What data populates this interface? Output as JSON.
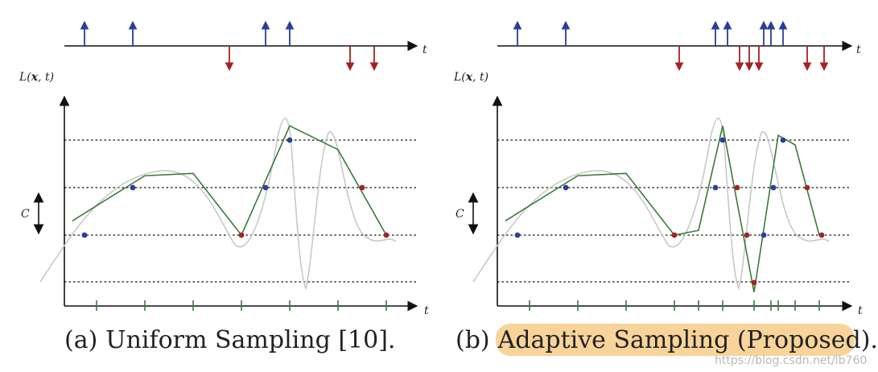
{
  "colors": {
    "positive_event": "#2b3d9c",
    "negative_event": "#a32424",
    "reconstruction": "#3a7a3a",
    "true_signal": "#c8c8c8",
    "axis": "#111111",
    "highlight": "#f8d49a"
  },
  "axes": {
    "t_label": "t",
    "y_label_base": "L(",
    "y_label_bold": "x",
    "y_label_tail": ", t)",
    "c_label": "C"
  },
  "panels": [
    {
      "caption_prefix": "(a)",
      "caption": "Uniform Sampling [10].",
      "pos_events": [
        0.05,
        0.25,
        0.8,
        0.9
      ],
      "neg_events": [
        0.65,
        1.15,
        1.25
      ],
      "ticks": [
        0.1,
        0.3,
        0.5,
        0.7,
        0.9,
        1.1,
        1.3
      ],
      "recon": [
        [
          0,
          0.3
        ],
        [
          0.1,
          0.62
        ],
        [
          0.3,
          1.25
        ],
        [
          0.5,
          1.3
        ],
        [
          0.7,
          0
        ],
        [
          0.9,
          2.3
        ],
        [
          1.1,
          1.8
        ],
        [
          1.3,
          0
        ]
      ],
      "samples_pos": [
        [
          0.05,
          0
        ],
        [
          0.25,
          1
        ],
        [
          0.8,
          1
        ],
        [
          0.9,
          2
        ]
      ],
      "samples_neg": [
        [
          0.7,
          0
        ],
        [
          1.2,
          1
        ],
        [
          1.3,
          0
        ]
      ]
    },
    {
      "caption_prefix": "(b)",
      "caption": "Adaptive Sampling (Proposed).",
      "pos_events": [
        0.05,
        0.25,
        0.87,
        0.92,
        1.07,
        1.1,
        1.15
      ],
      "neg_events": [
        0.72,
        0.97,
        1.01,
        1.05,
        1.25,
        1.32
      ],
      "ticks": [
        0.1,
        0.3,
        0.5,
        0.7,
        0.8,
        0.9,
        1.03,
        1.1,
        1.13,
        1.2,
        1.3
      ],
      "recon": [
        [
          0,
          0.3
        ],
        [
          0.1,
          0.62
        ],
        [
          0.3,
          1.25
        ],
        [
          0.5,
          1.3
        ],
        [
          0.7,
          0
        ],
        [
          0.8,
          0.1
        ],
        [
          0.9,
          2.3
        ],
        [
          1.03,
          -1.2
        ],
        [
          1.13,
          2.1
        ],
        [
          1.2,
          1.9
        ],
        [
          1.3,
          0
        ]
      ],
      "samples_pos": [
        [
          0.05,
          0
        ],
        [
          0.25,
          1
        ],
        [
          0.87,
          1
        ],
        [
          0.9,
          2
        ],
        [
          1.07,
          0
        ],
        [
          1.11,
          1
        ],
        [
          1.15,
          2
        ]
      ],
      "samples_neg": [
        [
          0.7,
          0
        ],
        [
          0.96,
          1
        ],
        [
          1.0,
          0
        ],
        [
          1.03,
          -1
        ],
        [
          1.25,
          1
        ],
        [
          1.31,
          0
        ]
      ]
    }
  ],
  "watermark": "https://blog.csdn.net/lb760"
}
